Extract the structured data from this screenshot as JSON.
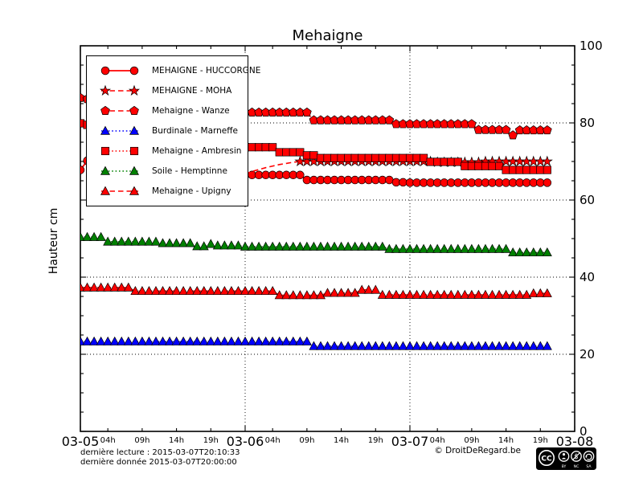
{
  "title": "Mehaigne",
  "ylabel": "Hauteur cm",
  "footer": {
    "line1": "dernière lecture : 2015-03-07T20:10:33",
    "line2": "dernière donnée  2015-03-07T20:00:00",
    "copyright": "© DroitDeRegard.be",
    "license": {
      "cc": "CC",
      "by": "BY",
      "nc": "NC",
      "sa": "SA"
    }
  },
  "axes": {
    "x": {
      "days": [
        "03-05",
        "03-06",
        "03-07",
        "03-08"
      ],
      "hour_labels": [
        "04h",
        "09h",
        "14h",
        "19h"
      ],
      "hour_offsets": [
        4,
        9,
        14,
        19
      ],
      "grid_day_indices": [
        1,
        2
      ]
    },
    "y": {
      "ticks": [
        0,
        20,
        40,
        60,
        80,
        100
      ],
      "minor_step": 5,
      "grid_at": [
        20,
        40,
        60,
        80
      ],
      "range": [
        0,
        100
      ]
    }
  },
  "chart_data": {
    "type": "line",
    "title": "Mehaigne",
    "ylabel": "Hauteur cm",
    "ylim": [
      0,
      100
    ],
    "x_start": "2015-03-05T00:00",
    "x_end_axis": "2015-03-08T00:00",
    "interval_hours": 1,
    "grid": true,
    "legend_position": "upper left",
    "series": [
      {
        "name": "MEHAIGNE - HUCCORGNE",
        "color": "#ff0000",
        "marker": "circle",
        "linestyle": "solid",
        "values": [
          67.8,
          70.2,
          70,
          69.8,
          69.5,
          69.3,
          69,
          68.8,
          68.5,
          68.3,
          68,
          67.9,
          67.7,
          67.5,
          67.4,
          67.2,
          67.1,
          67,
          66.9,
          66.8,
          66.8,
          66.7,
          66.6,
          66.6,
          66.5,
          66.5,
          66.5,
          66.5,
          66.5,
          66.5,
          66.5,
          66.5,
          66.5,
          65.2,
          65.2,
          65.2,
          65.2,
          65.2,
          65.2,
          65.2,
          65.2,
          65.2,
          65.2,
          65.2,
          65.2,
          65.2,
          64.6,
          64.6,
          64.5,
          64.5,
          64.5,
          64.5,
          64.5,
          64.5,
          64.5,
          64.5,
          64.5,
          64.5,
          64.5,
          64.5,
          64.5,
          64.5,
          64.5,
          64.5,
          64.5,
          64.5,
          64.5,
          64.5,
          64.5
        ]
      },
      {
        "name": "MEHAIGNE - MOHA",
        "color": "#ff0000",
        "marker": "star",
        "linestyle": "dashed",
        "markers_from": 32,
        "values": [
          null,
          null,
          null,
          null,
          null,
          null,
          null,
          null,
          null,
          null,
          null,
          null,
          null,
          null,
          null,
          null,
          null,
          null,
          null,
          null,
          null,
          null,
          null,
          null,
          66.8,
          67.4,
          67.9,
          68.4,
          68.8,
          69.2,
          69.5,
          69.8,
          70,
          70,
          70,
          70,
          70,
          70,
          70,
          70,
          70,
          70,
          70,
          70,
          70,
          70,
          70,
          70,
          70,
          70,
          70,
          70,
          69.8,
          69.8,
          69.8,
          69.8,
          69.8,
          69.8,
          69.8,
          70,
          70,
          70,
          70,
          70,
          70,
          70,
          70,
          70,
          70
        ]
      },
      {
        "name": "Mehaigne - Wanze",
        "color": "#ff0000",
        "marker": "pentagon",
        "linestyle": "dashed",
        "values": [
          86.5,
          86.2,
          85.9,
          85.6,
          85.3,
          85.1,
          84.8,
          84.6,
          84.4,
          84.2,
          84,
          83.8,
          83.7,
          83.5,
          83.4,
          83.3,
          83.2,
          83.1,
          83,
          83,
          82.9,
          82.9,
          82.8,
          82.8,
          82.7,
          82.7,
          82.7,
          82.7,
          82.7,
          82.7,
          82.7,
          82.7,
          82.7,
          82.7,
          80.7,
          80.7,
          80.7,
          80.7,
          80.7,
          80.7,
          80.7,
          80.7,
          80.7,
          80.7,
          80.7,
          80.7,
          79.7,
          79.7,
          79.7,
          79.7,
          79.7,
          79.7,
          79.7,
          79.7,
          79.7,
          79.7,
          79.7,
          79.7,
          78.2,
          78.2,
          78.2,
          78.2,
          78.2,
          76.8,
          78.1,
          78.1,
          78.1,
          78.1,
          78.1
        ]
      },
      {
        "name": "Burdinale - Marneffe",
        "color": "#0000ff",
        "marker": "triangle",
        "linestyle": "dotted",
        "values": [
          23.3,
          23.3,
          23.3,
          23.3,
          23.3,
          23.3,
          23.3,
          23.3,
          23.3,
          23.3,
          23.3,
          23.3,
          23.3,
          23.3,
          23.3,
          23.3,
          23.3,
          23.3,
          23.3,
          23.3,
          23.3,
          23.3,
          23.3,
          23.3,
          23.3,
          23.3,
          23.3,
          23.3,
          23.3,
          23.3,
          23.3,
          23.3,
          23.3,
          23.3,
          22.1,
          22.1,
          22.1,
          22.1,
          22.1,
          22.1,
          22.1,
          22.1,
          22.1,
          22.1,
          22.1,
          22.1,
          22.1,
          22.1,
          22.1,
          22.1,
          22.1,
          22.1,
          22.1,
          22.1,
          22.1,
          22.1,
          22.1,
          22.1,
          22.1,
          22.1,
          22.1,
          22.1,
          22.1,
          22.1,
          22.1,
          22.1,
          22.1,
          22.1,
          22.1
        ]
      },
      {
        "name": "Mehaigne - Ambresin",
        "color": "#ff0000",
        "marker": "square",
        "linestyle": "dotted",
        "values": [
          79.9,
          79.5,
          79.1,
          78.7,
          78.3,
          77.9,
          77.5,
          77.2,
          76.9,
          76.6,
          76.3,
          76,
          75.7,
          75.5,
          75.3,
          75.1,
          74.9,
          74.7,
          74.5,
          74.3,
          74.2,
          74.1,
          74,
          73.9,
          73.7,
          73.7,
          73.7,
          73.7,
          73.7,
          72.4,
          72.4,
          72.4,
          72.4,
          71.6,
          71.6,
          70.9,
          70.9,
          70.9,
          70.9,
          70.9,
          70.9,
          70.9,
          70.9,
          70.9,
          70.9,
          70.9,
          70.9,
          70.9,
          70.9,
          70.9,
          70.9,
          69.9,
          69.9,
          69.9,
          69.9,
          69.9,
          68.8,
          68.8,
          68.8,
          68.8,
          68.8,
          68.8,
          67.8,
          67.8,
          67.8,
          67.8,
          67.8,
          67.8,
          67.8
        ]
      },
      {
        "name": "Soile - Hemptinne",
        "color": "#008000",
        "marker": "triangle",
        "linestyle": "dotted",
        "values": [
          50.4,
          50.4,
          50.4,
          50.4,
          49.2,
          49.2,
          49.2,
          49.2,
          49.2,
          49.2,
          49.2,
          49.2,
          48.8,
          48.8,
          48.8,
          48.8,
          48.8,
          48,
          48,
          48.6,
          48.2,
          48.2,
          48.2,
          48.2,
          47.9,
          47.9,
          47.9,
          47.9,
          47.9,
          47.9,
          47.9,
          47.9,
          47.9,
          47.9,
          47.9,
          47.9,
          47.9,
          47.9,
          47.9,
          47.9,
          47.9,
          47.9,
          47.9,
          47.9,
          47.9,
          47.3,
          47.3,
          47.3,
          47.3,
          47.3,
          47.3,
          47.3,
          47.3,
          47.3,
          47.3,
          47.3,
          47.3,
          47.3,
          47.3,
          47.3,
          47.3,
          47.3,
          47.3,
          46.4,
          46.4,
          46.4,
          46.4,
          46.4,
          46.4
        ]
      },
      {
        "name": "Mehaigne - Upigny",
        "color": "#ff0000",
        "marker": "triangle",
        "linestyle": "dashed",
        "values": [
          37.3,
          37.3,
          37.3,
          37.3,
          37.3,
          37.3,
          37.3,
          37.3,
          36.4,
          36.4,
          36.4,
          36.4,
          36.4,
          36.4,
          36.4,
          36.4,
          36.4,
          36.4,
          36.4,
          36.4,
          36.4,
          36.4,
          36.4,
          36.4,
          36.4,
          36.4,
          36.4,
          36.4,
          36.4,
          35.3,
          35.3,
          35.3,
          35.3,
          35.3,
          35.3,
          35.3,
          35.9,
          35.9,
          35.9,
          35.9,
          35.9,
          36.7,
          36.7,
          36.7,
          35.4,
          35.4,
          35.4,
          35.4,
          35.4,
          35.4,
          35.4,
          35.4,
          35.4,
          35.4,
          35.4,
          35.4,
          35.4,
          35.4,
          35.4,
          35.4,
          35.4,
          35.4,
          35.4,
          35.4,
          35.4,
          35.4,
          35.8,
          35.8,
          35.8
        ]
      }
    ]
  }
}
